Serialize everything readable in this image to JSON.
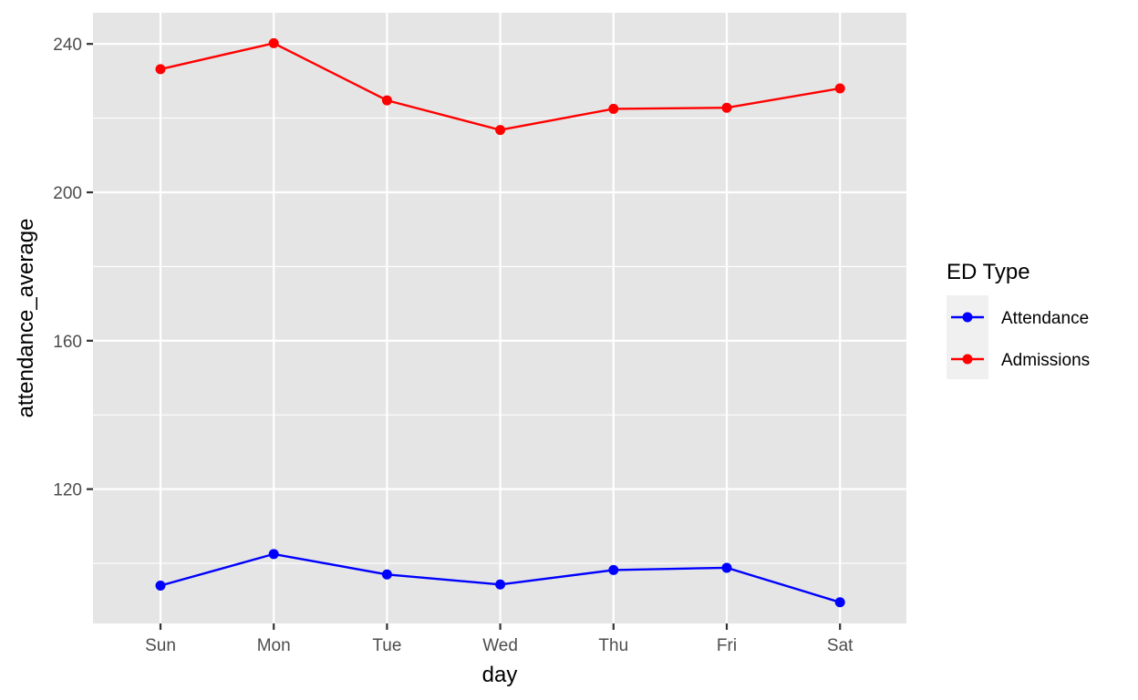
{
  "chart_data": {
    "type": "line",
    "categories": [
      "Sun",
      "Mon",
      "Tue",
      "Wed",
      "Thu",
      "Fri",
      "Sat"
    ],
    "series": [
      {
        "name": "Attendance",
        "color": "#0000ff",
        "values": [
          94,
          102.5,
          97,
          94.3,
          98.2,
          98.8,
          89.5
        ]
      },
      {
        "name": "Admissions",
        "color": "#ff0000",
        "values": [
          233.2,
          240.2,
          224.8,
          216.8,
          222.5,
          222.8,
          228
        ]
      }
    ],
    "title": "",
    "xlabel": "day",
    "ylabel": "attendance_average",
    "ylim": [
      83.8,
      248.4
    ],
    "yticks": [
      120,
      160,
      200,
      240
    ],
    "ytick_labels": [
      "120",
      "160",
      "200",
      "240"
    ],
    "legend": {
      "title": "ED Type",
      "placement": "right"
    },
    "grid": true,
    "panel_background": "#e5e5e5",
    "grid_color": "#ffffff"
  }
}
